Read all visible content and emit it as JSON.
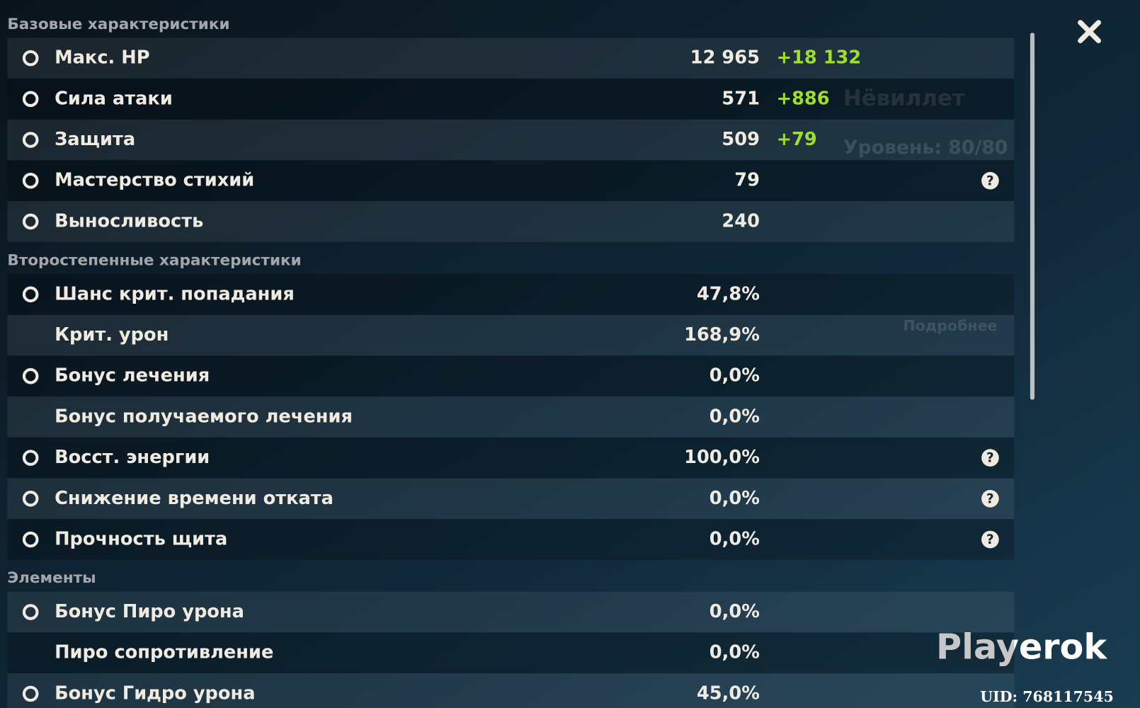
{
  "sections": [
    {
      "title": "Базовые характеристики",
      "rows": [
        {
          "label": "Макс. HP",
          "value": "12 965",
          "bonus": "+18 132"
        },
        {
          "label": "Сила атаки",
          "value": "571",
          "bonus": "+886"
        },
        {
          "label": "Защита",
          "value": "509",
          "bonus": "+79"
        },
        {
          "label": "Мастерство стихий",
          "value": "79",
          "help": "?"
        },
        {
          "label": "Выносливость",
          "value": "240"
        }
      ]
    },
    {
      "title": "Второстепенные характеристики",
      "rows": [
        {
          "label": "Шанс крит. попадания",
          "value": "47,8%"
        },
        {
          "label": "Крит. урон",
          "value": "168,9%"
        },
        {
          "label": "Бонус лечения",
          "value": "0,0%"
        },
        {
          "label": "Бонус получаемого лечения",
          "value": "0,0%"
        },
        {
          "label": "Восст. энергии",
          "value": "100,0%",
          "help": "?"
        },
        {
          "label": "Снижение времени отката",
          "value": "0,0%",
          "help": "?"
        },
        {
          "label": "Прочность щита",
          "value": "0,0%",
          "help": "?"
        }
      ]
    },
    {
      "title": "Элементы",
      "rows": [
        {
          "label": "Бонус Пиро урона",
          "value": "0,0%"
        },
        {
          "label": "Пиро сопротивление",
          "value": "0,0%"
        },
        {
          "label": "Бонус Гидро урона",
          "value": "45,0%"
        }
      ]
    }
  ],
  "character": {
    "name": "Нёвиллет",
    "level": "Уровень: 80/80",
    "details_button": "Подробнее"
  },
  "watermark": "Playerok",
  "uid": "UID: 768117545"
}
